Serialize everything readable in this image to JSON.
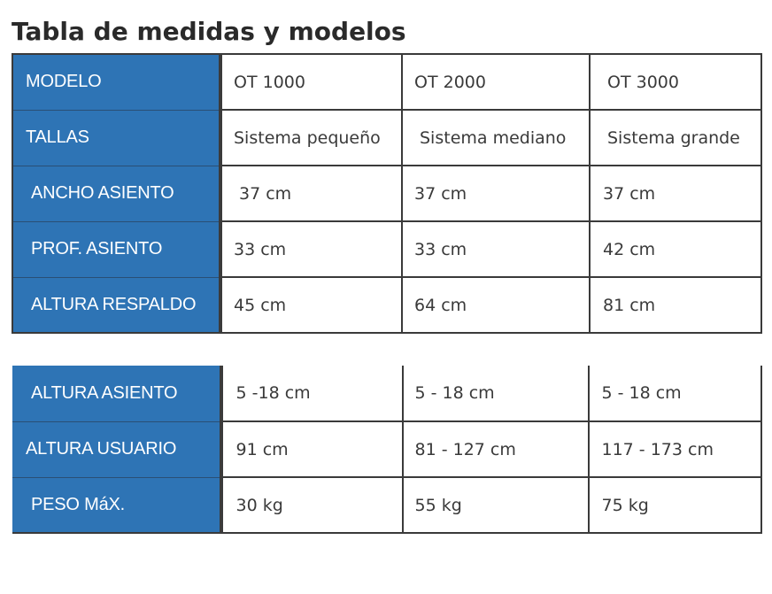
{
  "title": "Tabla de medidas y modelos",
  "colors": {
    "header_bg": "#2e74b5",
    "header_text": "#ffffff",
    "border": "#3a3a3a"
  },
  "table1": {
    "rows": [
      {
        "label": "MODELO",
        "values": [
          "OT 1000",
          "OT 2000",
          "OT 3000"
        ]
      },
      {
        "label": "TALLAS",
        "values": [
          "Sistema pequeño",
          "Sistema mediano",
          "Sistema grande"
        ]
      },
      {
        "label": "ANCHO ASIENTO",
        "values": [
          "37 cm",
          "37 cm",
          "37 cm"
        ]
      },
      {
        "label": "PROF. ASIENTO",
        "values": [
          "33 cm",
          "33 cm",
          "42 cm"
        ]
      },
      {
        "label": "ALTURA RESPALDO",
        "values": [
          "45 cm",
          "64 cm",
          "81 cm"
        ]
      }
    ]
  },
  "table2": {
    "rows": [
      {
        "label": "ALTURA ASIENTO",
        "values": [
          "5 -18 cm",
          "5 - 18 cm",
          "5 - 18 cm"
        ]
      },
      {
        "label": "ALTURA USUARIO",
        "values": [
          "91 cm",
          "81 - 127 cm",
          "117 - 173 cm"
        ]
      },
      {
        "label": "PESO MáX.",
        "values": [
          "30 kg",
          "55 kg",
          "75 kg"
        ]
      }
    ]
  }
}
